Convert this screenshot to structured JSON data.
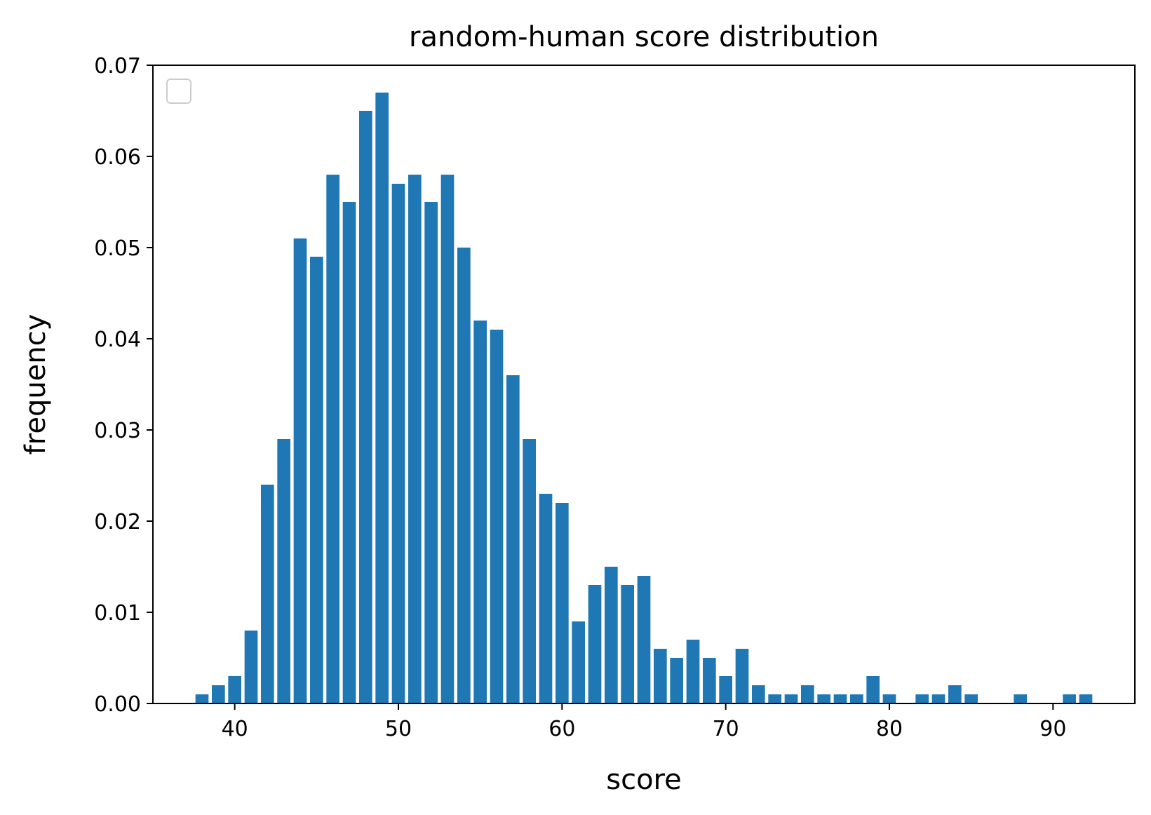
{
  "chart_data": {
    "type": "bar",
    "title": "random-human score distribution",
    "xlabel": "score",
    "ylabel": "frequency",
    "xlim": [
      35,
      95
    ],
    "ylim": [
      0,
      0.07
    ],
    "xticks": [
      40,
      50,
      60,
      70,
      80,
      90
    ],
    "yticks": [
      0.0,
      0.01,
      0.02,
      0.03,
      0.04,
      0.05,
      0.06,
      0.07
    ],
    "ytick_labels": [
      "0.00",
      "0.01",
      "0.02",
      "0.03",
      "0.04",
      "0.05",
      "0.06",
      "0.07"
    ],
    "grid": false,
    "legend": "upper-left (empty)",
    "bar_color": "#1f77b4",
    "bar_width": 0.8,
    "x": [
      38,
      39,
      40,
      41,
      42,
      43,
      44,
      45,
      46,
      47,
      48,
      49,
      50,
      51,
      52,
      53,
      54,
      55,
      56,
      57,
      58,
      59,
      60,
      61,
      62,
      63,
      64,
      65,
      66,
      67,
      68,
      69,
      70,
      71,
      72,
      73,
      74,
      75,
      76,
      77,
      78,
      79,
      80,
      82,
      83,
      84,
      85,
      88,
      91,
      92
    ],
    "values": [
      0.001,
      0.002,
      0.003,
      0.008,
      0.024,
      0.029,
      0.051,
      0.049,
      0.058,
      0.055,
      0.065,
      0.067,
      0.057,
      0.058,
      0.055,
      0.058,
      0.05,
      0.042,
      0.041,
      0.036,
      0.029,
      0.023,
      0.022,
      0.009,
      0.013,
      0.015,
      0.013,
      0.014,
      0.006,
      0.005,
      0.007,
      0.005,
      0.003,
      0.006,
      0.002,
      0.001,
      0.001,
      0.002,
      0.001,
      0.001,
      0.001,
      0.003,
      0.001,
      0.001,
      0.001,
      0.002,
      0.001,
      0.001,
      0.001,
      0.001
    ]
  }
}
